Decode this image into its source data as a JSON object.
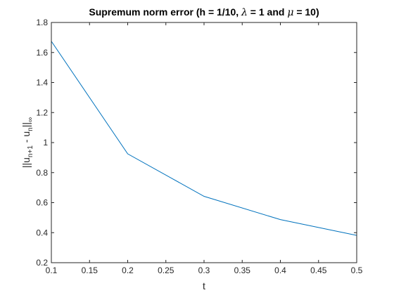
{
  "chart_data": {
    "type": "line",
    "title": {
      "prefix": "Supremum norm error (h = 1/10, ",
      "lambda_symbol": "λ",
      "middle": " = 1 and ",
      "mu_symbol": "μ",
      "suffix": " = 10)"
    },
    "xlabel": "t",
    "ylabel": {
      "open": "||u",
      "sub1": "n+1",
      "minus": " - u",
      "sub2": "n",
      "close": "||",
      "sub3": "∞"
    },
    "xlim": [
      0.1,
      0.5
    ],
    "ylim": [
      0.2,
      1.8
    ],
    "xticks": [
      "0.1",
      "0.15",
      "0.2",
      "0.25",
      "0.3",
      "0.35",
      "0.4",
      "0.45",
      "0.5"
    ],
    "yticks": [
      "0.2",
      "0.4",
      "0.6",
      "0.8",
      "1",
      "1.2",
      "1.4",
      "1.6",
      "1.8"
    ],
    "grid": false,
    "series": [
      {
        "color": "#0072BD",
        "x": [
          0.1,
          0.2,
          0.3,
          0.4,
          0.5
        ],
        "y": [
          1.675,
          0.925,
          0.642,
          0.487,
          0.382
        ]
      }
    ]
  }
}
